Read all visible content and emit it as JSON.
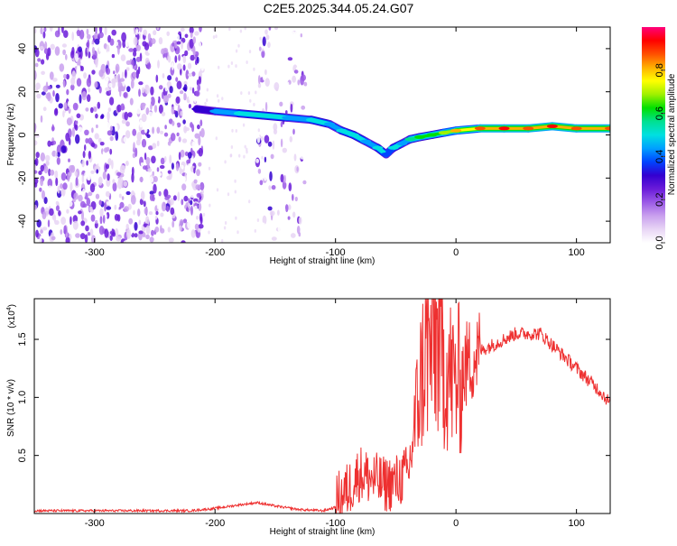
{
  "figure": {
    "title": "C2E5.2025.344.05.24.G07"
  },
  "chart_data": [
    {
      "type": "heatmap",
      "xlabel": "Height of straight line (km)",
      "ylabel": "Frequency (Hz)",
      "xlim": [
        -350,
        128
      ],
      "ylim": [
        -50,
        50
      ],
      "x_ticks": [
        "-300",
        "-200",
        "-100",
        "0",
        "100"
      ],
      "y_ticks": [
        "40",
        "20",
        "0",
        "-20",
        "-40"
      ],
      "colorbar": {
        "label": "Normalized spectral amplitude",
        "range": [
          0.0,
          1.0
        ],
        "ticks": [
          "0.0",
          "0.2",
          "0.4",
          "0.6",
          "0.8"
        ],
        "colors": [
          "#ffffff",
          "#e8d5f5",
          "#c9a0ee",
          "#9b59e6",
          "#6a1bd9",
          "#3300d0",
          "#0044ff",
          "#00a0ff",
          "#00e0e0",
          "#00e090",
          "#00e000",
          "#a0f000",
          "#ffff00",
          "#ffb000",
          "#ff5000",
          "#ff0000",
          "#ff007a"
        ]
      },
      "trace": {
        "x": [
          -215,
          -200,
          -180,
          -160,
          -140,
          -120,
          -105,
          -95,
          -85,
          -75,
          -65,
          -58,
          -52,
          -45,
          -38,
          -30,
          -20,
          -10,
          0,
          20,
          40,
          60,
          80,
          100,
          128
        ],
        "y": [
          12,
          11,
          10,
          9,
          8,
          7,
          5,
          2,
          0,
          -3,
          -6,
          -9,
          -6,
          -4,
          -2,
          -1,
          0,
          1,
          2,
          3,
          3,
          3,
          4,
          3,
          3
        ],
        "amplitude": [
          0.3,
          0.45,
          0.5,
          0.5,
          0.45,
          0.5,
          0.45,
          0.5,
          0.5,
          0.45,
          0.5,
          0.4,
          0.5,
          0.45,
          0.55,
          0.6,
          0.6,
          0.7,
          0.8,
          0.9,
          0.95,
          0.9,
          0.95,
          0.9,
          0.85
        ]
      },
      "noise_regions": [
        [
          -350,
          -210
        ],
        [
          -165,
          -125
        ]
      ]
    },
    {
      "type": "line",
      "xlabel": "Height of straight line (km)",
      "ylabel": "SNR (10 * v/v)",
      "scale_label": "(x10",
      "scale_exp": "4",
      "scale_close": ")",
      "xlim": [
        -350,
        128
      ],
      "ylim": [
        0,
        1.85
      ],
      "x_ticks": [
        "-300",
        "-200",
        "-100",
        "0",
        "100"
      ],
      "y_ticks": [
        "1.5",
        "1.0",
        "0.5"
      ],
      "series": [
        {
          "color": "#ee3030",
          "x": [
            -350,
            -300,
            -250,
            -220,
            -200,
            -180,
            -165,
            -150,
            -130,
            -110,
            -100,
            -90,
            -80,
            -70,
            -60,
            -50,
            -40,
            -35,
            -30,
            -25,
            -20,
            -15,
            -10,
            -5,
            0,
            5,
            10,
            20,
            30,
            40,
            50,
            60,
            70,
            80,
            90,
            100,
            110,
            120,
            128
          ],
          "y": [
            0.02,
            0.02,
            0.02,
            0.02,
            0.04,
            0.07,
            0.09,
            0.06,
            0.03,
            0.02,
            0.05,
            0.15,
            0.3,
            0.25,
            0.2,
            0.22,
            0.3,
            0.7,
            1.1,
            1.4,
            1.4,
            1.5,
            1.3,
            1.2,
            1.1,
            1.2,
            1.3,
            1.4,
            1.45,
            1.5,
            1.55,
            1.55,
            1.55,
            1.45,
            1.35,
            1.25,
            1.15,
            1.05,
            0.95
          ]
        }
      ]
    }
  ]
}
